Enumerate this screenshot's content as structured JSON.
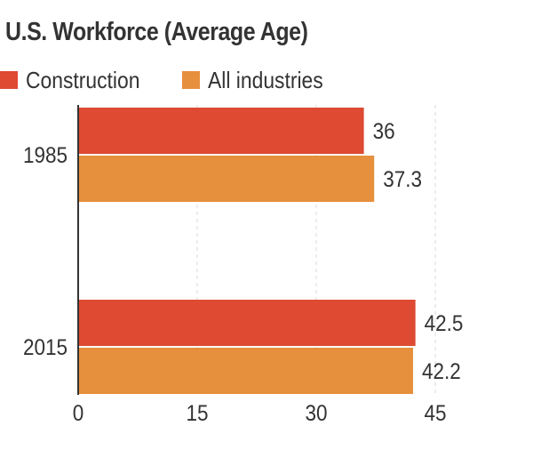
{
  "chart_data": {
    "type": "bar",
    "orientation": "horizontal",
    "title": "U.S. Workforce (Average Age)",
    "categories": [
      "1985",
      "2015"
    ],
    "series": [
      {
        "name": "Construction",
        "color": "#de4a32",
        "values": [
          36,
          42.5
        ],
        "labels": [
          "36",
          "42.5"
        ]
      },
      {
        "name": "All industries",
        "color": "#e68f3c",
        "values": [
          37.3,
          42.2
        ],
        "labels": [
          "37.3",
          "42.2"
        ]
      }
    ],
    "xticks": [
      0,
      15,
      30,
      45
    ],
    "xlim": [
      0,
      45
    ],
    "xlabel": "",
    "ylabel": "",
    "grid": "vertical dashed",
    "legend_position": "top-left"
  }
}
